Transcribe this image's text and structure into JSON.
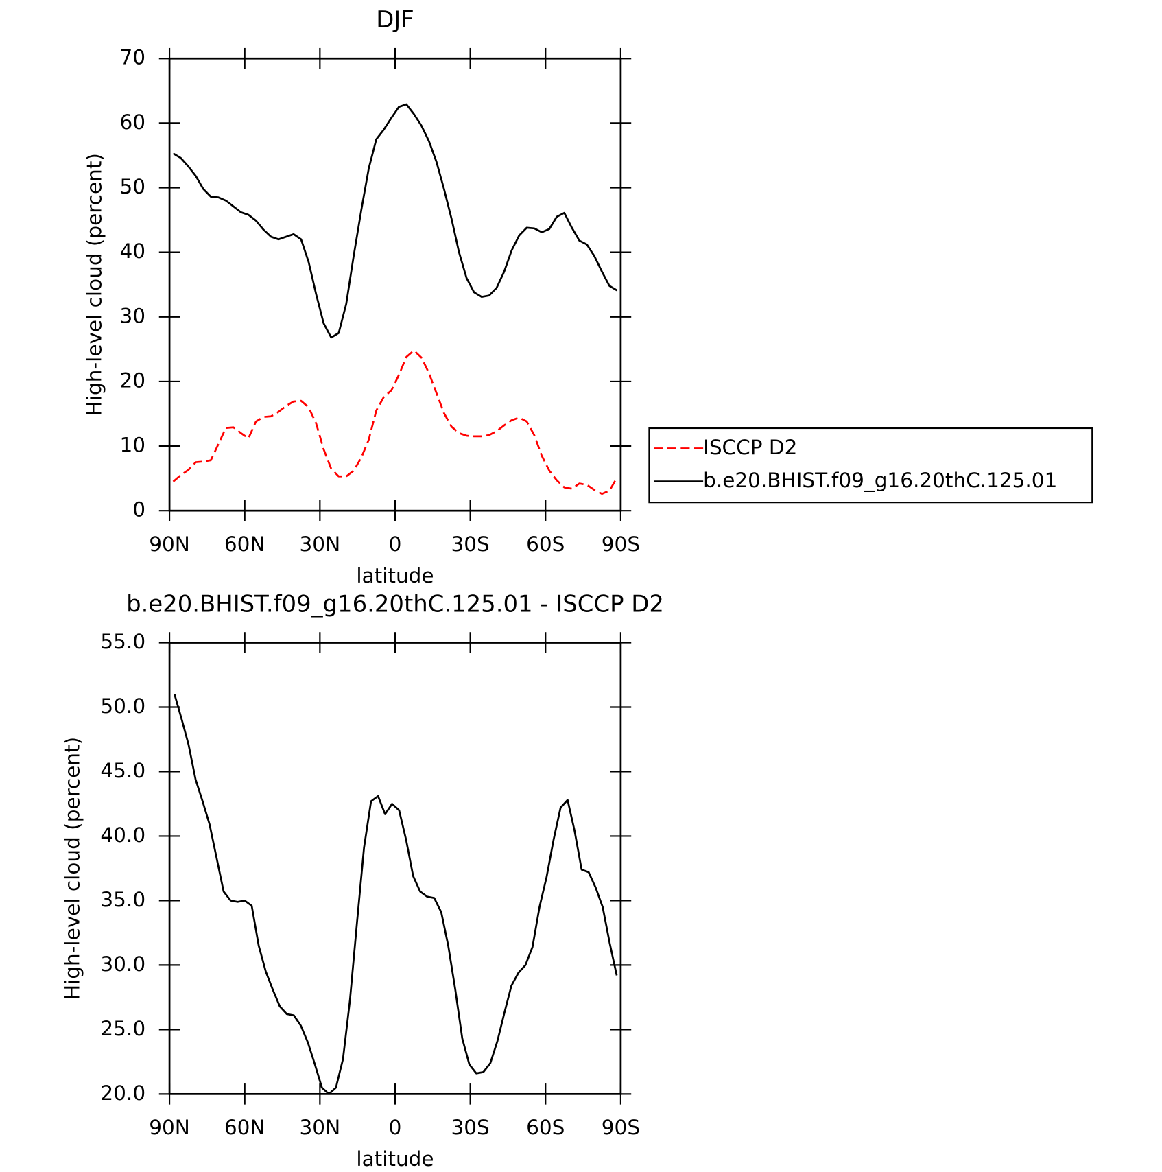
{
  "chart_data": [
    {
      "type": "line",
      "title": "DJF",
      "xlabel": "latitude",
      "ylabel": "High-level cloud (percent)",
      "xlim": [
        90,
        -90
      ],
      "xticks": [
        {
          "value": 90,
          "label": "90N"
        },
        {
          "value": 60,
          "label": "60N"
        },
        {
          "value": 30,
          "label": "30N"
        },
        0,
        {
          "value": -30,
          "label": "30S"
        },
        {
          "value": -60,
          "label": "60S"
        },
        {
          "value": -90,
          "label": "90S"
        }
      ],
      "ylim": [
        0,
        70
      ],
      "yticks": [
        0,
        10,
        20,
        30,
        40,
        50,
        60,
        70
      ],
      "legend": "right",
      "x": [
        88.5,
        85.5,
        82.5,
        79.5,
        76.5,
        73.5,
        70.5,
        67.5,
        64.5,
        61.5,
        58.5,
        55.5,
        52.5,
        49.5,
        46.5,
        43.5,
        40.5,
        37.5,
        34.5,
        31.5,
        28.5,
        25.5,
        22.5,
        19.5,
        16.5,
        13.5,
        10.5,
        7.5,
        4.5,
        1.5,
        -1.5,
        -4.5,
        -7.5,
        -10.5,
        -13.5,
        -16.5,
        -19.5,
        -22.5,
        -25.5,
        -28.5,
        -31.5,
        -34.5,
        -37.5,
        -40.5,
        -43.5,
        -46.5,
        -49.5,
        -52.5,
        -55.5,
        -58.5,
        -61.5,
        -64.5,
        -67.5,
        -70.5,
        -73.5,
        -76.5,
        -79.5,
        -82.5,
        -85.5,
        -88.5
      ],
      "series": [
        {
          "name": "ISCCP D2",
          "color": "#ff0000",
          "dash": true,
          "values": [
            4.5,
            5.5,
            6.3,
            7.5,
            7.6,
            7.8,
            10.3,
            12.8,
            12.9,
            12,
            11.2,
            13.8,
            14.5,
            14.6,
            15.3,
            16.2,
            16.9,
            17,
            16,
            13.5,
            9.5,
            6.5,
            5.3,
            5.3,
            6.2,
            8.2,
            11,
            15.5,
            17.6,
            18.6,
            21,
            23.8,
            24.8,
            23.7,
            21.3,
            18.2,
            15.1,
            13,
            12,
            11.6,
            11.5,
            11.5,
            11.7,
            12.3,
            13.2,
            14,
            14.4,
            13.8,
            11.7,
            8.5,
            6.2,
            4.7,
            3.6,
            3.4,
            4.2,
            4,
            3.2,
            2.6,
            3.1,
            5.1
          ]
        },
        {
          "name": "b.e20.BHIST.f09_g16.20thC.125.01",
          "color": "#000000",
          "dash": false,
          "values": [
            55.3,
            54.6,
            53.3,
            51.8,
            49.8,
            48.6,
            48.5,
            48,
            47.1,
            46.2,
            45.8,
            44.9,
            43.5,
            42.4,
            42,
            42.4,
            42.8,
            42,
            38.5,
            33.5,
            29,
            26.8,
            27.5,
            32,
            39.5,
            46.5,
            53,
            57.5,
            59,
            60.8,
            62.5,
            62.9,
            61.4,
            59.6,
            57.2,
            54,
            49.8,
            45.2,
            40,
            36,
            33.8,
            33.1,
            33.3,
            34.5,
            37,
            40.3,
            42.6,
            43.8,
            43.7,
            43.1,
            43.6,
            45.5,
            46.1,
            43.8,
            41.8,
            41.2,
            39.4,
            37,
            34.8,
            34.1
          ]
        }
      ]
    },
    {
      "type": "line",
      "title": "b.e20.BHIST.f09_g16.20thC.125.01 - ISCCP D2",
      "xlabel": "latitude",
      "ylabel": "High-level cloud (percent)",
      "xlim": [
        90,
        -90
      ],
      "xticks": [
        {
          "value": 90,
          "label": "90N"
        },
        {
          "value": 60,
          "label": "60N"
        },
        {
          "value": 30,
          "label": "30N"
        },
        0,
        {
          "value": -30,
          "label": "30S"
        },
        {
          "value": -60,
          "label": "60S"
        },
        {
          "value": -90,
          "label": "90S"
        }
      ],
      "ylim": [
        20,
        55
      ],
      "yticks": [
        {
          "value": 20,
          "label": "20.0"
        },
        {
          "value": 25,
          "label": "25.0"
        },
        {
          "value": 30,
          "label": "30.0"
        },
        {
          "value": 35,
          "label": "35.0"
        },
        {
          "value": 40,
          "label": "40.0"
        },
        {
          "value": 45,
          "label": "45.0"
        },
        {
          "value": 50,
          "label": "50.0"
        },
        {
          "value": 55,
          "label": "55.0"
        }
      ],
      "x": [
        88,
        85.2,
        82.4,
        79.6,
        76.8,
        74,
        71.2,
        68.4,
        65.6,
        62.8,
        60,
        57.2,
        54.4,
        51.6,
        48.8,
        46,
        43.2,
        40.4,
        37.6,
        34.8,
        32,
        29.2,
        26.4,
        23.6,
        20.8,
        18,
        15.2,
        12.4,
        9.6,
        6.8,
        4,
        1.2,
        -1.6,
        -4.4,
        -7.2,
        -10,
        -12.8,
        -15.6,
        -18.4,
        -21.2,
        -24,
        -26.8,
        -29.6,
        -32.4,
        -35.2,
        -38,
        -40.8,
        -43.6,
        -46.4,
        -49.2,
        -52,
        -54.8,
        -57.6,
        -60.4,
        -63.2,
        -66,
        -68.8,
        -71.6,
        -74.4,
        -77.2,
        -80,
        -82.8,
        -85.6,
        -88.4
      ],
      "series": [
        {
          "color": "#000000",
          "dash": false,
          "values": [
            51,
            49.1,
            47.1,
            44.4,
            42.7,
            40.9,
            38.3,
            35.7,
            35,
            34.9,
            35,
            34.6,
            31.5,
            29.5,
            28.1,
            26.8,
            26.2,
            26.1,
            25.3,
            24,
            22.3,
            20.5,
            20,
            20.5,
            22.7,
            27.3,
            33.3,
            39.1,
            42.7,
            43.1,
            41.7,
            42.5,
            42,
            39.7,
            36.9,
            35.7,
            35.3,
            35.2,
            34.1,
            31.5,
            28.1,
            24.3,
            22.3,
            21.6,
            21.7,
            22.4,
            24.1,
            26.3,
            28.4,
            29.4,
            30,
            31.4,
            34.5,
            36.8,
            39.7,
            42.2,
            42.8,
            40.4,
            37.4,
            37.2,
            36,
            34.5,
            31.7,
            29.2
          ]
        }
      ]
    }
  ]
}
